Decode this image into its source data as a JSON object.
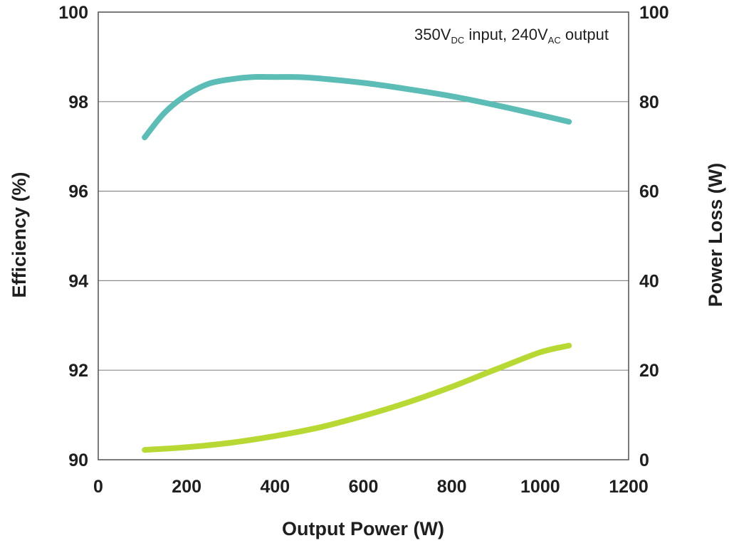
{
  "chart_data": {
    "type": "line",
    "annotation": {
      "prefix": "350V",
      "sub1": "DC",
      "middle": " input, 240V",
      "sub2": "AC",
      "suffix": " output"
    },
    "xlabel": "Output Power (W)",
    "ylabel_left": "Efficiency (%)",
    "ylabel_right": "Power Loss (W)",
    "xlim": [
      0,
      1200
    ],
    "ylim_left": [
      90,
      100
    ],
    "ylim_right": [
      0,
      100
    ],
    "x_ticks": [
      "0",
      "200",
      "400",
      "600",
      "800",
      "1000",
      "1200"
    ],
    "y_left_ticks": [
      "90",
      "92",
      "94",
      "96",
      "98",
      "100"
    ],
    "y_right_ticks": [
      "0",
      "20",
      "40",
      "60",
      "80",
      "100"
    ],
    "grid": "horizontal",
    "series": [
      {
        "axis": "left",
        "color": "#5bbdb6",
        "x": [
          105,
          150,
          200,
          250,
          300,
          350,
          400,
          450,
          500,
          600,
          700,
          800,
          900,
          1000,
          1065
        ],
        "values": [
          97.2,
          97.75,
          98.15,
          98.4,
          98.5,
          98.55,
          98.55,
          98.55,
          98.52,
          98.42,
          98.28,
          98.12,
          97.92,
          97.7,
          97.55
        ]
      },
      {
        "axis": "right",
        "color": "#b8d934",
        "x": [
          105,
          200,
          300,
          400,
          500,
          600,
          700,
          800,
          900,
          1000,
          1065
        ],
        "values": [
          2.2,
          2.8,
          3.8,
          5.3,
          7.2,
          9.8,
          12.8,
          16.3,
          20.2,
          24.0,
          25.5
        ]
      }
    ]
  }
}
